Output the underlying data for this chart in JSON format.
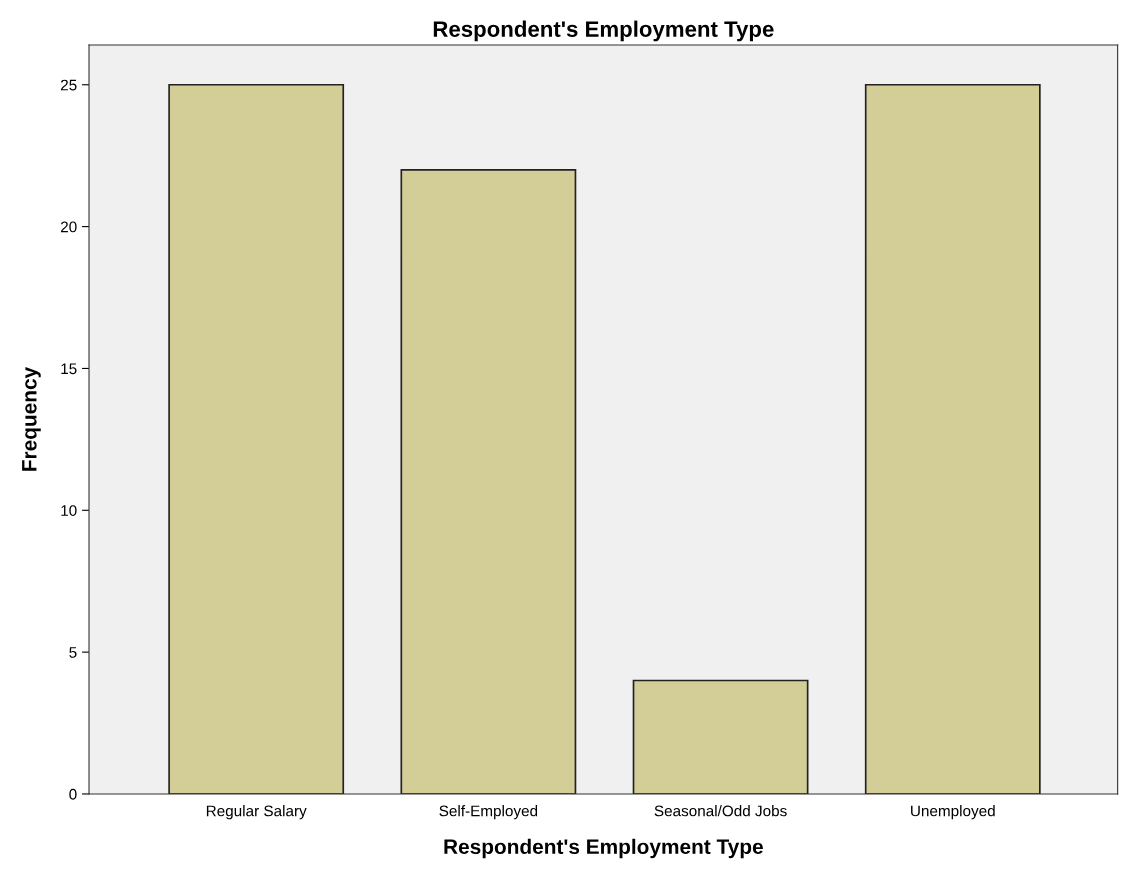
{
  "chart_data": {
    "type": "bar",
    "title": "Respondent's Employment Type",
    "xlabel": "Respondent's Employment Type",
    "ylabel": "Frequency",
    "categories": [
      "Regular Salary",
      "Self-Employed",
      "Seasonal/Odd Jobs",
      "Unemployed"
    ],
    "values": [
      25,
      22,
      4,
      25
    ],
    "color": "#d3cd98",
    "ylim": [
      0,
      26.4
    ],
    "yticks": [
      0,
      5,
      10,
      15,
      20,
      25
    ],
    "grid": false
  }
}
